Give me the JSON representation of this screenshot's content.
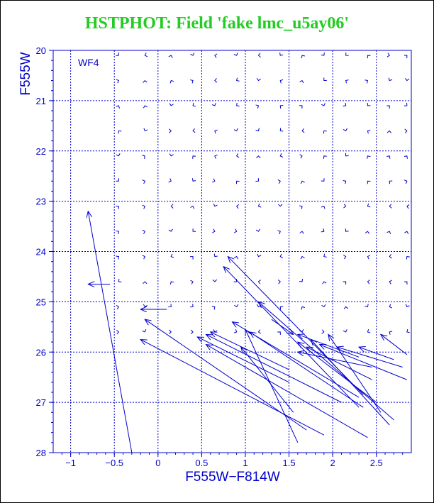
{
  "chart_data": {
    "type": "vector-field",
    "title": "HSTPHOT: Field 'fake lmc_u5ay06'",
    "title_color": "#22cc22",
    "xlabel": "F555W−F814W",
    "ylabel": "F555W",
    "panel_label": "WF4",
    "xlim": [
      -1.2,
      2.9
    ],
    "ylim": [
      28,
      20
    ],
    "xticks": [
      -1,
      -0.5,
      0,
      0.5,
      1,
      1.5,
      2,
      2.5
    ],
    "xtick_labels": [
      "−1",
      "−0.5",
      "0",
      "0.5",
      "1",
      "1.5",
      "2",
      "2.5"
    ],
    "yticks": [
      20,
      21,
      22,
      23,
      24,
      25,
      26,
      27,
      28
    ],
    "ytick_labels": [
      "20",
      "21",
      "22",
      "23",
      "24",
      "25",
      "26",
      "27",
      "28"
    ],
    "grid": true,
    "grid_color": "#0000cc",
    "axis_color": "#0000cc",
    "arrow_color": "#0000cc",
    "arrows": [
      {
        "x0": -0.3,
        "y0": 28.0,
        "x1": -0.8,
        "y1": 23.2
      },
      {
        "x0": -0.55,
        "y0": 24.65,
        "x1": -0.8,
        "y1": 24.65
      },
      {
        "x0": 0.1,
        "y0": 25.15,
        "x1": -0.2,
        "y1": 25.15
      },
      {
        "x0": 1.7,
        "y0": 27.55,
        "x1": -0.15,
        "y1": 25.35
      },
      {
        "x0": 1.9,
        "y0": 27.65,
        "x1": -0.2,
        "y1": 25.75
      },
      {
        "x0": 1.6,
        "y0": 27.8,
        "x1": 1.0,
        "y1": 25.55
      },
      {
        "x0": 1.55,
        "y0": 27.2,
        "x1": 0.95,
        "y1": 25.9
      },
      {
        "x0": 1.5,
        "y0": 26.6,
        "x1": 0.45,
        "y1": 25.7
      },
      {
        "x0": 2.4,
        "y0": 27.7,
        "x1": 0.55,
        "y1": 25.85
      },
      {
        "x0": 2.1,
        "y0": 27.0,
        "x1": 0.55,
        "y1": 25.65
      },
      {
        "x0": 1.5,
        "y0": 26.35,
        "x1": 0.6,
        "y1": 25.6
      },
      {
        "x0": 2.3,
        "y0": 26.9,
        "x1": 0.85,
        "y1": 25.4
      },
      {
        "x0": 2.3,
        "y0": 27.1,
        "x1": 0.75,
        "y1": 24.3
      },
      {
        "x0": 2.35,
        "y0": 26.85,
        "x1": 0.8,
        "y1": 24.1
      },
      {
        "x0": 2.35,
        "y0": 27.1,
        "x1": 1.05,
        "y1": 25.6
      },
      {
        "x0": 1.3,
        "y0": 25.35,
        "x1": 1.55,
        "y1": 25.65
      },
      {
        "x0": 2.45,
        "y0": 26.3,
        "x1": 1.6,
        "y1": 26.0
      },
      {
        "x0": 2.45,
        "y0": 26.55,
        "x1": 1.7,
        "y1": 25.9
      },
      {
        "x0": 2.5,
        "y0": 27.0,
        "x1": 1.6,
        "y1": 25.8
      },
      {
        "x0": 2.65,
        "y0": 27.45,
        "x1": 1.75,
        "y1": 25.75
      },
      {
        "x0": 2.7,
        "y0": 27.35,
        "x1": 1.15,
        "y1": 25.0
      },
      {
        "x0": 2.55,
        "y0": 27.2,
        "x1": 1.95,
        "y1": 25.65
      },
      {
        "x0": 2.85,
        "y0": 26.55,
        "x1": 1.85,
        "y1": 25.85
      },
      {
        "x0": 2.8,
        "y0": 26.3,
        "x1": 2.05,
        "y1": 25.9
      },
      {
        "x0": 2.7,
        "y0": 26.15,
        "x1": 2.3,
        "y1": 25.9
      },
      {
        "x0": 2.85,
        "y0": 26.05,
        "x1": 2.55,
        "y1": 25.65
      },
      {
        "x0": 2.3,
        "y0": 26.1,
        "x1": 1.6,
        "y1": 25.65
      }
    ]
  }
}
